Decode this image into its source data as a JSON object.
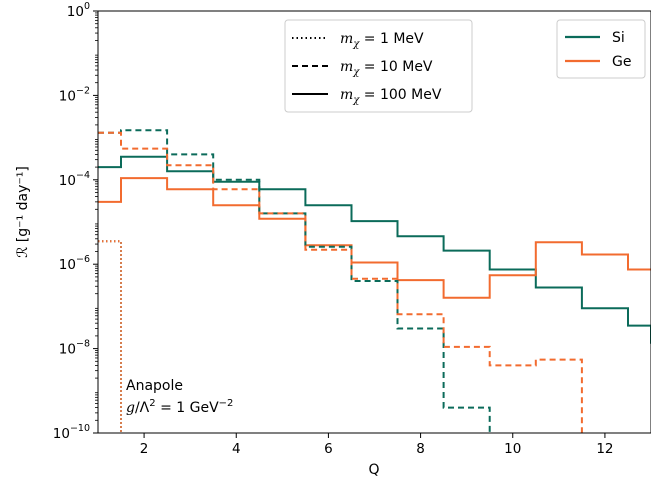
{
  "chart_data": {
    "type": "line",
    "step": true,
    "xlabel": "Q",
    "ylabel": "ℛ [g⁻¹ day⁻¹]",
    "xlim": [
      1,
      13
    ],
    "ylim": [
      1e-10,
      1
    ],
    "yscale": "log",
    "xticks": [
      2,
      4,
      6,
      8,
      10,
      12
    ],
    "yticks": [
      {
        "value": 1,
        "label_base": "10",
        "label_exp": "0"
      },
      {
        "value": 0.01,
        "label_base": "10",
        "label_exp": "-2"
      },
      {
        "value": 0.0001,
        "label_base": "10",
        "label_exp": "-4"
      },
      {
        "value": 1e-06,
        "label_base": "10",
        "label_exp": "-6"
      },
      {
        "value": 1e-08,
        "label_base": "10",
        "label_exp": "-8"
      },
      {
        "value": 1e-10,
        "label_base": "10",
        "label_exp": "-10"
      }
    ],
    "colors": {
      "Si": "#0b6b5a",
      "Ge": "#f26b2f"
    },
    "materials": [
      "Si",
      "Ge"
    ],
    "masses": [
      {
        "label_main": "m",
        "label_sub": "χ",
        "label_eq": " = 1 MeV",
        "dash": "dotted"
      },
      {
        "label_main": "m",
        "label_sub": "χ",
        "label_eq": " = 10 MeV",
        "dash": "dashed"
      },
      {
        "label_main": "m",
        "label_sub": "χ",
        "label_eq": " = 100 MeV",
        "dash": "solid"
      }
    ],
    "series": [
      {
        "material": "Si",
        "mass": "100 MeV",
        "dash": "solid",
        "color": "#0b6b5a",
        "x": [
          1,
          1.5,
          2.5,
          3.5,
          4.5,
          5.5,
          6.5,
          7.5,
          8.5,
          9.5,
          10.5,
          11.5,
          12.5,
          13
        ],
        "y": [
          0.0002,
          0.00035,
          0.00016,
          9e-05,
          6e-05,
          2.5e-05,
          1.05e-05,
          4.6e-06,
          2.1e-06,
          7.5e-07,
          2.8e-07,
          9e-08,
          3.5e-08,
          1.3e-08
        ]
      },
      {
        "material": "Ge",
        "mass": "100 MeV",
        "dash": "solid",
        "color": "#f26b2f",
        "x": [
          1,
          1.5,
          2.5,
          3.5,
          4.5,
          5.5,
          6.5,
          7.5,
          8.5,
          9.5,
          10.5,
          11.5,
          12.5,
          13
        ],
        "y": [
          3e-05,
          0.00011,
          6e-05,
          2.5e-05,
          1.2e-05,
          2.8e-06,
          1.1e-06,
          4.2e-07,
          1.6e-07,
          5.5e-07,
          3.3e-06,
          1.7e-06,
          7.5e-07,
          7.5e-07
        ]
      },
      {
        "material": "Si",
        "mass": "10 MeV",
        "dash": "dashed",
        "color": "#0b6b5a",
        "x": [
          1,
          1.5,
          2.5,
          3.5,
          4.5,
          5.5,
          6.5,
          7.5,
          8.5,
          9.5
        ],
        "y": [
          0.0013,
          0.0015,
          0.0004,
          0.0001,
          1.6e-05,
          2.6e-06,
          4e-07,
          3e-08,
          4e-10,
          1e-10
        ]
      },
      {
        "material": "Ge",
        "mass": "10 MeV",
        "dash": "dashed",
        "color": "#f26b2f",
        "x": [
          1,
          1.5,
          2.5,
          3.5,
          4.5,
          5.5,
          6.5,
          7.5,
          8.5,
          9.5,
          10.5,
          11.5
        ],
        "y": [
          0.0013,
          0.00055,
          0.00022,
          6e-05,
          1.6e-05,
          2.2e-06,
          4.5e-07,
          6.5e-08,
          1.1e-08,
          4e-09,
          5.5e-09,
          1e-10
        ]
      },
      {
        "material": "Si",
        "mass": "1 MeV",
        "dash": "dotted",
        "color": "#0b6b5a",
        "x": [
          1,
          1.5
        ],
        "y": [
          3.5e-06,
          1e-10
        ]
      },
      {
        "material": "Ge",
        "mass": "1 MeV",
        "dash": "dotted",
        "color": "#f26b2f",
        "x": [
          1,
          1.5
        ],
        "y": [
          3.5e-06,
          1e-10
        ]
      }
    ],
    "annotation": {
      "line1": "Anapole",
      "line2_g": "g",
      "line2_lambda": "/Λ",
      "line2_exp": "2",
      "line2_eq": " = 1 GeV",
      "line2_unit_exp": "−2"
    },
    "legends": {
      "mass_legend_position": "top-center",
      "material_legend_position": "top-right"
    },
    "grid": false
  }
}
